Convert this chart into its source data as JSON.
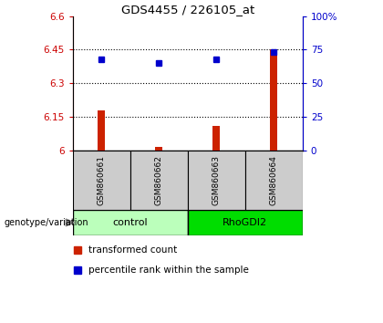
{
  "title": "GDS4455 / 226105_at",
  "samples": [
    "GSM860661",
    "GSM860662",
    "GSM860663",
    "GSM860664"
  ],
  "group_labels": [
    "control",
    "RhoGDI2"
  ],
  "group_colors": [
    "#bbffbb",
    "#00dd00"
  ],
  "sample_bg_color": "#cccccc",
  "red_values": [
    6.18,
    6.015,
    6.11,
    6.45
  ],
  "blue_values": [
    68,
    65,
    68,
    73
  ],
  "ylim_left": [
    6.0,
    6.6
  ],
  "ylim_right": [
    0,
    100
  ],
  "yticks_left": [
    6.0,
    6.15,
    6.3,
    6.45,
    6.6
  ],
  "yticks_right": [
    0,
    25,
    50,
    75,
    100
  ],
  "ytick_labels_left": [
    "6",
    "6.15",
    "6.3",
    "6.45",
    "6.6"
  ],
  "ytick_labels_right": [
    "0",
    "25",
    "50",
    "75",
    "100%"
  ],
  "left_tick_color": "#cc0000",
  "right_tick_color": "#0000cc",
  "bar_color": "#cc2200",
  "dot_color": "#0000cc",
  "bar_base": 6.0,
  "legend_red_label": "transformed count",
  "legend_blue_label": "percentile rank within the sample",
  "genotype_label": "genotype/variation"
}
